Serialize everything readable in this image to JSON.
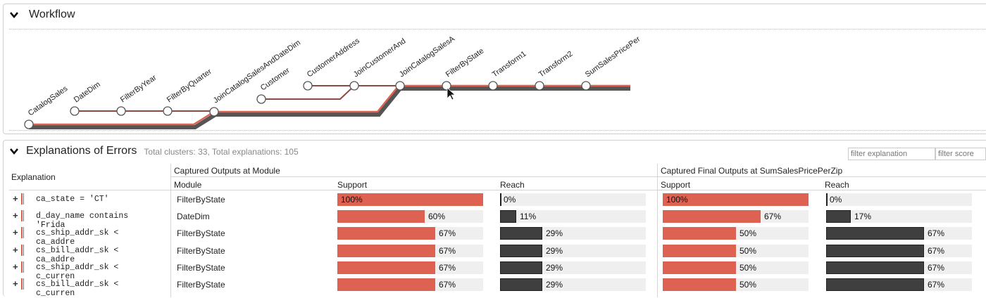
{
  "workflow": {
    "title": "Workflow",
    "nodes": [
      {
        "id": "CatalogSales",
        "label": "CatalogSales"
      },
      {
        "id": "DateDim",
        "label": "DateDim"
      },
      {
        "id": "FilterByYear",
        "label": "FilterByYear"
      },
      {
        "id": "FilterByQuarter",
        "label": "FilterByQuarter"
      },
      {
        "id": "JoinCatalogSalesAndDateDim",
        "label": "JoinCatalogSalesAndDateDim"
      },
      {
        "id": "Customer",
        "label": "Customer"
      },
      {
        "id": "CustomerAddress",
        "label": "CustomerAddress"
      },
      {
        "id": "JoinCustomerAnd",
        "label": "JoinCustomerAnd"
      },
      {
        "id": "JoinCatalogSalesA",
        "label": "JoinCatalogSalesA"
      },
      {
        "id": "FilterByState",
        "label": "FilterByState"
      },
      {
        "id": "Transform1",
        "label": "Transform1"
      },
      {
        "id": "Transform2",
        "label": "Transform2"
      },
      {
        "id": "SumSalesPricePer",
        "label": "SumSalesPricePer"
      }
    ]
  },
  "errors": {
    "title": "Explanations of Errors",
    "summary": "Total clusters: 33, Total explanations: 105",
    "filter_explanation_placeholder": "filter explanation",
    "filter_score_placeholder": "filter score",
    "headers": {
      "explanation": "Explanation",
      "group_module": "Captured Outputs at Module",
      "group_final": "Captured Final Outputs at SumSalesPricePerZip",
      "module": "Module",
      "support": "Support",
      "reach": "Reach",
      "final_support": "Support",
      "final_reach": "Reach"
    },
    "rows": [
      {
        "expand": "+",
        "explanation": "ca_state = 'CT'",
        "module": "FilterByState",
        "support": 1.0,
        "support_label": "100%",
        "reach": 0.0,
        "reach_label": "0%",
        "final_support": 1.0,
        "final_support_label": "100%",
        "final_reach": 0.0,
        "final_reach_label": "0%"
      },
      {
        "expand": "+",
        "explanation": "d_day_name contains 'Frida",
        "module": "DateDim",
        "support": 0.6,
        "support_label": "60%",
        "reach": 0.11,
        "reach_label": "11%",
        "final_support": 0.67,
        "final_support_label": "67%",
        "final_reach": 0.17,
        "final_reach_label": "17%"
      },
      {
        "expand": "+",
        "explanation": "cs_ship_addr_sk < ca_addre",
        "module": "FilterByState",
        "support": 0.67,
        "support_label": "67%",
        "reach": 0.29,
        "reach_label": "29%",
        "final_support": 0.5,
        "final_support_label": "50%",
        "final_reach": 0.67,
        "final_reach_label": "67%"
      },
      {
        "expand": "+",
        "explanation": "cs_bill_addr_sk < ca_addre",
        "module": "FilterByState",
        "support": 0.67,
        "support_label": "67%",
        "reach": 0.29,
        "reach_label": "29%",
        "final_support": 0.5,
        "final_support_label": "50%",
        "final_reach": 0.67,
        "final_reach_label": "67%"
      },
      {
        "expand": "+",
        "explanation": "cs_ship_addr_sk < c_curren",
        "module": "FilterByState",
        "support": 0.67,
        "support_label": "67%",
        "reach": 0.29,
        "reach_label": "29%",
        "final_support": 0.5,
        "final_support_label": "50%",
        "final_reach": 0.67,
        "final_reach_label": "67%"
      },
      {
        "expand": "+",
        "explanation": "cs_bill_addr_sk < c_curren",
        "module": "FilterByState",
        "support": 0.67,
        "support_label": "67%",
        "reach": 0.29,
        "reach_label": "29%",
        "final_support": 0.5,
        "final_support_label": "50%",
        "final_reach": 0.67,
        "final_reach_label": "67%"
      }
    ]
  },
  "colors": {
    "accent_red": "#dd6251",
    "dark_bar": "#3f3f3f",
    "track": "#efefef"
  }
}
